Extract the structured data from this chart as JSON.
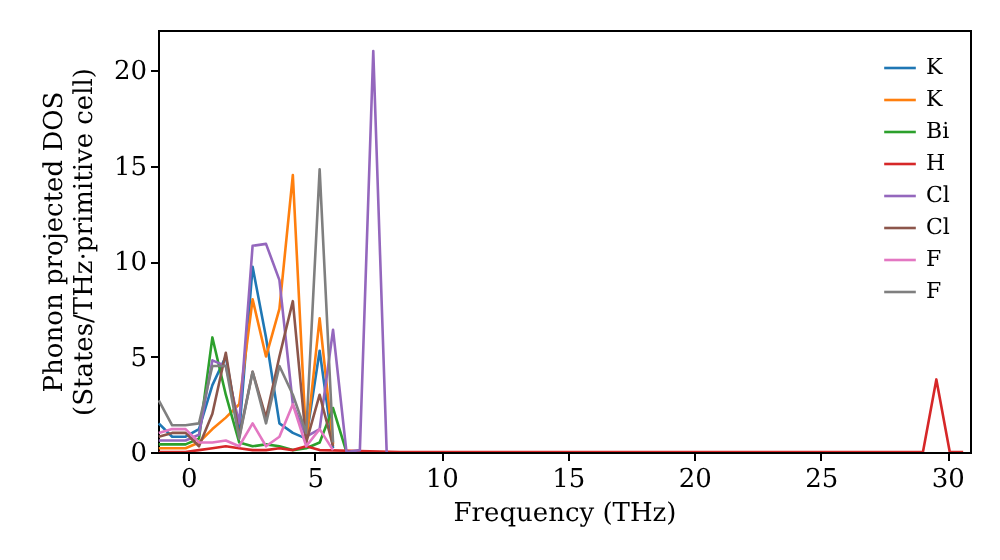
{
  "chart_data": {
    "type": "line",
    "xlabel": "Frequency (THz)",
    "ylabel": "Phonon projected DOS\n(States/THz·primitive cell)",
    "x": [
      -1.17,
      -0.64,
      -0.11,
      0.42,
      0.95,
      1.48,
      2.01,
      2.54,
      3.07,
      3.6,
      4.13,
      4.66,
      5.19,
      5.72,
      6.25,
      6.78,
      7.31,
      7.84,
      8.37,
      28.51,
      29.04,
      29.57,
      30.1,
      30.63
    ],
    "xlim": [
      -1.2,
      30.9
    ],
    "ylim": [
      0,
      22.1
    ],
    "xticks": [
      0,
      5,
      10,
      15,
      20,
      25,
      30
    ],
    "yticks": [
      0,
      5,
      10,
      15,
      20
    ],
    "grid": false,
    "legend": "top right",
    "line_style": "solid",
    "marker": "none",
    "series": [
      {
        "name": "K",
        "color": "#1f77b4",
        "values": [
          1.5,
          0.8,
          0.8,
          1.2,
          3.5,
          5.0,
          1.0,
          9.7,
          6.0,
          1.5,
          1.0,
          0.7,
          5.3,
          0.2,
          null,
          null,
          null,
          null,
          null,
          null,
          null,
          null,
          null,
          null
        ]
      },
      {
        "name": "K",
        "color": "#ff7f0e",
        "values": [
          0.2,
          0.2,
          0.2,
          0.5,
          1.2,
          1.8,
          2.5,
          8.0,
          5.0,
          7.5,
          14.5,
          0.5,
          7.0,
          0.4,
          null,
          null,
          null,
          null,
          null,
          null,
          null,
          null,
          null,
          null
        ]
      },
      {
        "name": "Bi",
        "color": "#2ca02c",
        "values": [
          0.4,
          0.4,
          0.4,
          0.7,
          6.0,
          3.0,
          0.5,
          0.3,
          0.4,
          0.3,
          0.1,
          0.2,
          0.5,
          2.3,
          0,
          null,
          null,
          null,
          null,
          null,
          null,
          null,
          null,
          null
        ]
      },
      {
        "name": "H",
        "color": "#d62728",
        "values": [
          0,
          0,
          0,
          0.1,
          0.2,
          0.3,
          0.2,
          0.1,
          0.1,
          0.2,
          0.1,
          0.3,
          0.1,
          null,
          null,
          null,
          null,
          null,
          0,
          0,
          0,
          3.8,
          0,
          0
        ]
      },
      {
        "name": "Cl",
        "color": "#9467bd",
        "values": [
          0.6,
          0.6,
          0.6,
          0.9,
          4.8,
          4.5,
          1.5,
          10.8,
          10.9,
          9.0,
          2.5,
          0.8,
          1.2,
          6.4,
          0,
          0.1,
          21.0,
          0,
          null,
          null,
          null,
          null,
          null,
          null
        ]
      },
      {
        "name": "Cl",
        "color": "#8c564b",
        "values": [
          0.8,
          1.0,
          1.0,
          0.3,
          2.0,
          5.2,
          0.8,
          4.2,
          1.8,
          5.0,
          7.9,
          0.5,
          3.0,
          0.3,
          null,
          null,
          null,
          null,
          null,
          null,
          null,
          null,
          null,
          null
        ]
      },
      {
        "name": "F",
        "color": "#e377c2",
        "values": [
          1.0,
          1.2,
          1.2,
          0.5,
          0.5,
          0.6,
          0.3,
          1.5,
          0.3,
          0.8,
          2.5,
          0.3,
          1.2,
          0.1,
          null,
          null,
          null,
          null,
          null,
          null,
          null,
          null,
          null,
          null
        ]
      },
      {
        "name": "F",
        "color": "#7f7f7f",
        "values": [
          2.7,
          1.4,
          1.4,
          1.5,
          4.5,
          4.5,
          0.7,
          4.2,
          1.5,
          4.5,
          3.0,
          1.0,
          14.8,
          0.5,
          null,
          null,
          null,
          null,
          null,
          null,
          null,
          null,
          null,
          null
        ]
      }
    ]
  }
}
